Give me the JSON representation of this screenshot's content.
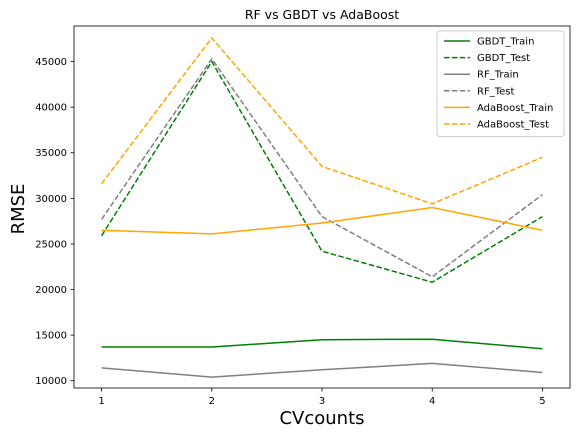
{
  "chart_data": {
    "type": "line",
    "title": "RF vs GBDT vs AdaBoost",
    "xlabel": "CVcounts",
    "ylabel": "RMSE",
    "x": [
      1,
      2,
      3,
      4,
      5
    ],
    "x_ticks": [
      "1",
      "2",
      "3",
      "4",
      "5"
    ],
    "y_ticks": [
      10000,
      15000,
      20000,
      25000,
      30000,
      35000,
      40000,
      45000
    ],
    "y_tick_labels": [
      "10000",
      "15000",
      "20000",
      "25000",
      "30000",
      "35000",
      "40000",
      "45000"
    ],
    "xlim": [
      0.75,
      5.25
    ],
    "ylim": [
      9200,
      48900
    ],
    "grid": false,
    "legend_position": "top-right",
    "series": [
      {
        "name": "GBDT_Train",
        "color": "#008000",
        "style": "solid",
        "values": [
          13700,
          13700,
          14500,
          14550,
          13500
        ]
      },
      {
        "name": "GBDT_Test",
        "color": "#008000",
        "style": "dashed",
        "values": [
          25900,
          45000,
          24200,
          20800,
          28000
        ]
      },
      {
        "name": "RF_Train",
        "color": "#808080",
        "style": "solid",
        "values": [
          11400,
          10400,
          11200,
          11900,
          10900
        ]
      },
      {
        "name": "RF_Test",
        "color": "#808080",
        "style": "dashed",
        "values": [
          27700,
          45300,
          28000,
          21400,
          30400
        ]
      },
      {
        "name": "AdaBoost_Train",
        "color": "#ffa500",
        "style": "solid",
        "values": [
          26500,
          26100,
          27300,
          29000,
          26500
        ]
      },
      {
        "name": "AdaBoost_Test",
        "color": "#ffa500",
        "style": "dashed",
        "values": [
          31600,
          47600,
          33500,
          29400,
          34500
        ]
      }
    ]
  }
}
